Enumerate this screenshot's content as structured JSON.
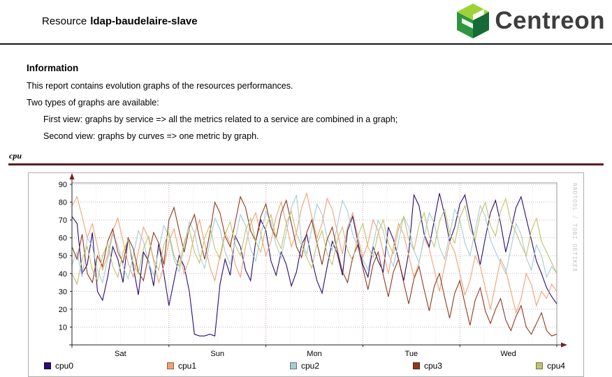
{
  "header": {
    "title_prefix": "Resource",
    "resource_name": "ldap-baudelaire-slave",
    "logo_text": "Centreon"
  },
  "info": {
    "heading": "Information",
    "line1": "This report contains evolution graphs of the resources performances.",
    "line2": "Two types of graphs are available:",
    "line3": "First view: graphs by service => all the metrics related to a service are combined in a graph;",
    "line4": "Second view: graphs by curves => one metric by graph."
  },
  "section": {
    "label": "cpu"
  },
  "chart_data": {
    "type": "line",
    "title": "cpu",
    "x_tick_labels": [
      "Sat",
      "Sun",
      "Mon",
      "Tue",
      "Wed"
    ],
    "y_ticks": [
      10,
      20,
      30,
      40,
      50,
      60,
      70,
      80,
      90
    ],
    "ylim": [
      0,
      95
    ],
    "grid": true,
    "legend_position": "bottom",
    "watermark": "RRDTOOL / TOBI OETIKER",
    "series": [
      {
        "name": "cpu0",
        "color": "#2a0c72",
        "values": [
          72,
          68,
          40,
          45,
          63,
          30,
          25,
          38,
          55,
          48,
          35,
          60,
          44,
          28,
          52,
          47,
          33,
          57,
          40,
          22,
          36,
          50,
          44,
          30,
          6,
          5,
          5,
          6,
          5,
          34,
          48,
          39,
          61,
          55,
          42,
          36,
          58,
          70,
          64,
          47,
          39,
          52,
          45,
          33,
          41,
          56,
          62,
          48,
          36,
          29,
          44,
          58,
          51,
          39,
          64,
          72,
          58,
          45,
          38,
          55,
          47,
          41,
          66,
          59,
          48,
          36,
          52,
          84,
          78,
          62,
          55,
          70,
          85,
          73,
          58,
          66,
          79,
          84,
          70,
          57,
          45,
          60,
          74,
          81,
          68,
          52,
          64,
          77,
          83,
          71,
          59,
          47,
          40,
          32,
          27,
          23
        ]
      },
      {
        "name": "cpu1",
        "color": "#f2a175",
        "values": [
          78,
          83,
          72,
          60,
          68,
          55,
          42,
          50,
          64,
          71,
          58,
          46,
          38,
          52,
          66,
          60,
          47,
          35,
          44,
          58,
          65,
          52,
          40,
          48,
          62,
          70,
          57,
          44,
          36,
          50,
          63,
          57,
          45,
          38,
          55,
          68,
          74,
          62,
          50,
          58,
          72,
          80,
          68,
          55,
          63,
          77,
          85,
          72,
          60,
          68,
          82,
          76,
          63,
          51,
          66,
          74,
          61,
          49,
          57,
          70,
          64,
          52,
          40,
          55,
          68,
          62,
          50,
          38,
          46,
          60,
          54,
          42,
          30,
          44,
          58,
          52,
          40,
          28,
          36,
          50,
          44,
          32,
          20,
          34,
          48,
          42,
          30,
          18,
          26,
          40,
          34,
          22,
          30,
          26,
          34,
          30
        ]
      },
      {
        "name": "cpu2",
        "color": "#a6ccd4",
        "values": [
          45,
          52,
          38,
          60,
          55,
          42,
          35,
          48,
          62,
          56,
          44,
          37,
          50,
          64,
          58,
          46,
          39,
          53,
          67,
          61,
          48,
          41,
          55,
          69,
          63,
          50,
          43,
          57,
          71,
          65,
          52,
          45,
          59,
          73,
          67,
          54,
          47,
          61,
          75,
          69,
          56,
          49,
          63,
          77,
          84,
          58,
          51,
          65,
          79,
          73,
          60,
          53,
          67,
          81,
          75,
          62,
          55,
          48,
          42,
          56,
          70,
          64,
          51,
          44,
          58,
          72,
          66,
          53,
          46,
          60,
          74,
          68,
          55,
          48,
          62,
          76,
          70,
          57,
          50,
          64,
          78,
          72,
          59,
          52,
          46,
          40,
          54,
          68,
          62,
          49,
          42,
          56,
          50,
          38,
          44,
          40
        ]
      },
      {
        "name": "cpu3",
        "color": "#8d3a1f",
        "values": [
          55,
          48,
          62,
          40,
          35,
          50,
          44,
          58,
          65,
          52,
          46,
          60,
          54,
          41,
          36,
          50,
          63,
          57,
          45,
          70,
          77,
          64,
          52,
          66,
          73,
          60,
          48,
          62,
          80,
          74,
          61,
          55,
          69,
          83,
          77,
          64,
          58,
          72,
          79,
          66,
          60,
          74,
          81,
          68,
          55,
          49,
          63,
          70,
          57,
          45,
          59,
          66,
          53,
          41,
          35,
          49,
          56,
          43,
          31,
          45,
          52,
          39,
          27,
          41,
          48,
          35,
          23,
          37,
          44,
          31,
          19,
          33,
          40,
          27,
          15,
          29,
          36,
          23,
          11,
          25,
          32,
          19,
          12,
          20,
          26,
          14,
          8,
          16,
          22,
          10,
          6,
          12,
          18,
          8,
          5,
          6
        ]
      },
      {
        "name": "cpu4",
        "color": "#c2c26b",
        "values": [
          40,
          34,
          48,
          55,
          42,
          36,
          50,
          57,
          44,
          38,
          52,
          59,
          46,
          40,
          54,
          61,
          48,
          42,
          56,
          63,
          50,
          44,
          58,
          65,
          52,
          46,
          60,
          67,
          54,
          48,
          62,
          69,
          56,
          50,
          64,
          71,
          58,
          52,
          66,
          73,
          60,
          54,
          68,
          75,
          62,
          56,
          49,
          43,
          57,
          64,
          51,
          45,
          59,
          66,
          53,
          47,
          61,
          68,
          55,
          49,
          63,
          70,
          57,
          51,
          65,
          72,
          59,
          53,
          67,
          74,
          61,
          55,
          69,
          76,
          63,
          57,
          71,
          78,
          65,
          59,
          73,
          80,
          67,
          61,
          75,
          82,
          69,
          63,
          56,
          50,
          64,
          71,
          58,
          52,
          46,
          40
        ]
      }
    ]
  }
}
